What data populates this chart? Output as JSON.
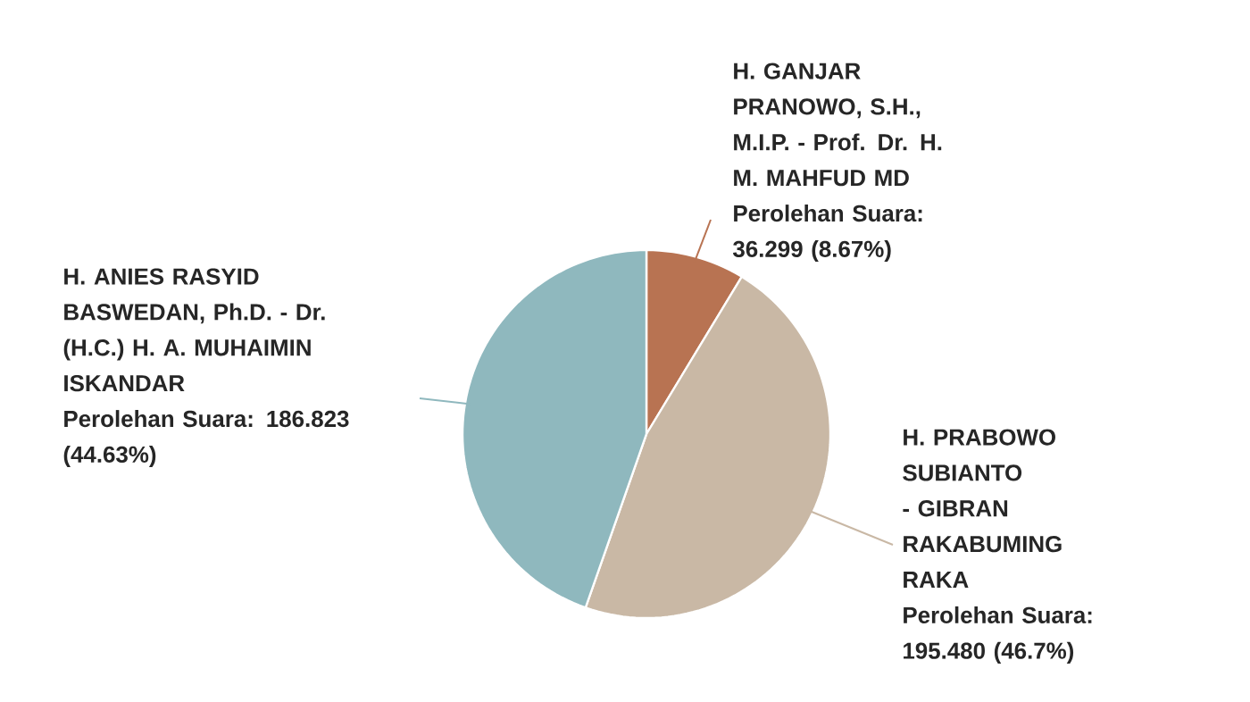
{
  "chart_data": {
    "type": "pie",
    "categories": [
      "H. GANJAR PRANOWO, S.H., M.I.P. - Prof. Dr. H. M. MAHFUD MD",
      "H. PRABOWO SUBIANTO - GIBRAN RAKABUMING RAKA",
      "H. ANIES RASYID BASWEDAN, Ph.D. - Dr. (H.C.) H. A. MUHAIMIN ISKANDAR"
    ],
    "values": [
      8.67,
      46.7,
      44.63
    ],
    "colors": [
      "#b87352",
      "#c9b8a5",
      "#8fb8be"
    ],
    "value_labels": [
      "Perolehan Suara: 36.299 (8.67%)",
      "Perolehan Suara: 195.480 (46.7%)",
      "Perolehan Suara: 186.823 (44.63%)"
    ]
  }
}
